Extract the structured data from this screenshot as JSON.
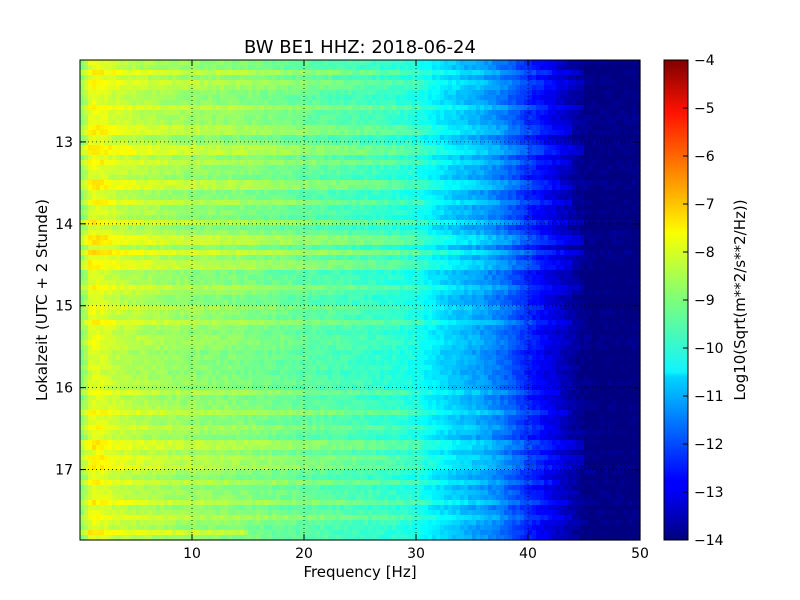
{
  "chart_data": {
    "type": "heatmap",
    "title": "BW BE1 HHZ: 2018-06-24",
    "xlabel": "Frequency [Hz]",
    "ylabel": "Lokalzeit (UTC + 2 Stunde)",
    "colorbar_label": "Log10(Sqrt(m**2/s**2/Hz))",
    "xlim": [
      0,
      50
    ],
    "ylim": [
      17.86,
      12.0
    ],
    "clim": [
      -14,
      -4
    ],
    "colormap": "jet",
    "grid": true,
    "x_ticks": [
      10,
      20,
      30,
      40,
      50
    ],
    "y_ticks": [
      13,
      14,
      15,
      16,
      17
    ],
    "colorbar_ticks": [
      -4,
      -5,
      -6,
      -7,
      -8,
      -9,
      -10,
      -11,
      -12,
      -13,
      -14
    ],
    "x_tick_labels": [
      "10",
      "20",
      "30",
      "40",
      "50"
    ],
    "y_tick_labels": [
      "13",
      "14",
      "15",
      "16",
      "17"
    ],
    "colorbar_tick_labels": [
      "−4",
      "−5",
      "−6",
      "−7",
      "−8",
      "−9",
      "−10",
      "−11",
      "−12",
      "−13",
      "−14"
    ],
    "frequency_profile": {
      "frequency_hz": [
        0,
        0.5,
        1,
        2,
        3,
        5,
        8,
        10,
        15,
        20,
        25,
        28,
        30,
        32,
        34,
        36,
        38,
        40,
        42,
        44,
        45,
        46,
        50
      ],
      "log_amplitude": [
        -9.0,
        -8.6,
        -8.0,
        -8.1,
        -8.3,
        -8.5,
        -8.7,
        -8.8,
        -9.0,
        -9.3,
        -9.6,
        -9.8,
        -10.0,
        -10.5,
        -10.9,
        -11.2,
        -11.7,
        -12.4,
        -13.0,
        -13.6,
        -13.9,
        -14.0,
        -14.0
      ]
    },
    "bright_bands": [
      {
        "time": 12.13,
        "max_hz": 45,
        "delta": 0.45
      },
      {
        "time": 12.3,
        "max_hz": 45,
        "delta": 0.35
      },
      {
        "time": 12.58,
        "max_hz": 45,
        "delta": 0.45
      },
      {
        "time": 12.85,
        "max_hz": 44,
        "delta": 0.4
      },
      {
        "time": 13.1,
        "max_hz": 45,
        "delta": 0.45
      },
      {
        "time": 13.25,
        "max_hz": 44,
        "delta": 0.35
      },
      {
        "time": 13.5,
        "max_hz": 43,
        "delta": 0.35
      },
      {
        "time": 13.58,
        "max_hz": 44,
        "delta": 0.4
      },
      {
        "time": 13.72,
        "max_hz": 44,
        "delta": 0.35
      },
      {
        "time": 14.0,
        "max_hz": 45,
        "delta": 0.45
      },
      {
        "time": 14.2,
        "max_hz": 45,
        "delta": 0.45
      },
      {
        "time": 14.35,
        "max_hz": 45,
        "delta": 0.55
      },
      {
        "time": 14.5,
        "max_hz": 44,
        "delta": 0.4
      },
      {
        "time": 14.78,
        "max_hz": 45,
        "delta": 0.45
      },
      {
        "time": 15.02,
        "max_hz": 43,
        "delta": 0.35
      },
      {
        "time": 15.22,
        "max_hz": 44,
        "delta": 0.4
      },
      {
        "time": 16.05,
        "max_hz": 43,
        "delta": 0.35
      },
      {
        "time": 16.28,
        "max_hz": 44,
        "delta": 0.45
      },
      {
        "time": 16.48,
        "max_hz": 43,
        "delta": 0.35
      },
      {
        "time": 16.7,
        "max_hz": 45,
        "delta": 0.55
      },
      {
        "time": 16.88,
        "max_hz": 45,
        "delta": 0.45
      },
      {
        "time": 16.98,
        "max_hz": 44,
        "delta": 0.35
      },
      {
        "time": 17.15,
        "max_hz": 43,
        "delta": 0.35
      },
      {
        "time": 17.38,
        "max_hz": 44,
        "delta": 0.35
      },
      {
        "time": 17.6,
        "max_hz": 44,
        "delta": 0.4
      },
      {
        "time": 17.75,
        "max_hz": 15,
        "delta": 0.6
      }
    ]
  }
}
